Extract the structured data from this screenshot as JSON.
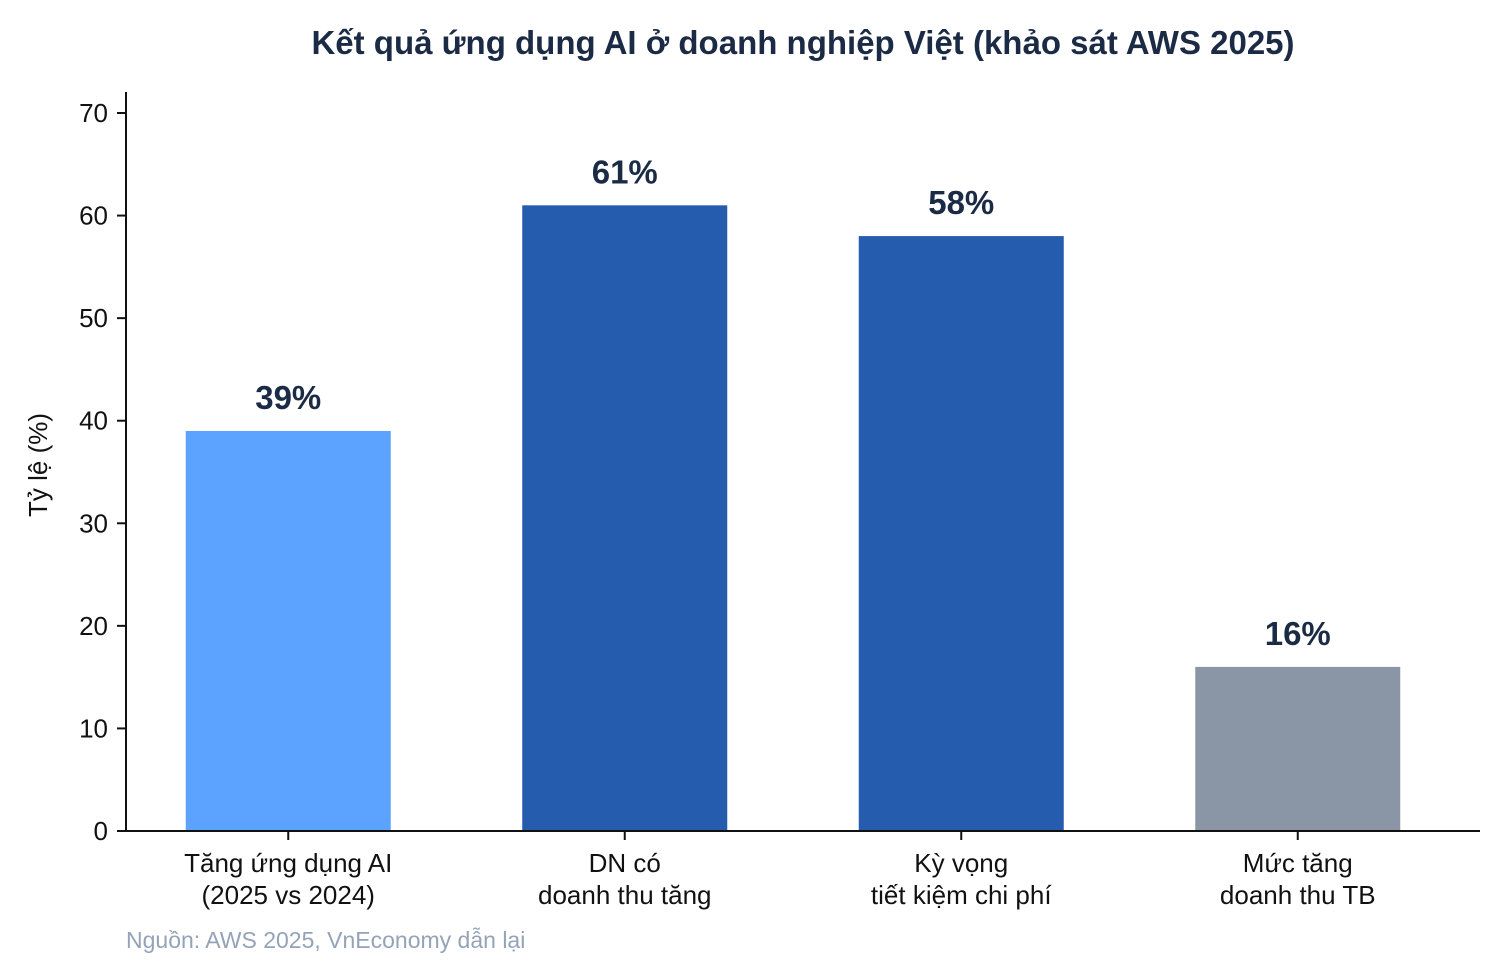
{
  "chart_data": {
    "type": "bar",
    "title": "Kết quả ứng dụng AI ở doanh nghiệp Việt (khảo sát AWS 2025)",
    "xlabel": "",
    "ylabel": "Tỷ lệ (%)",
    "ylim": [
      0,
      70
    ],
    "yticks": [
      0,
      10,
      20,
      30,
      40,
      50,
      60,
      70
    ],
    "ytick_labels": [
      "0",
      "10",
      "20",
      "30",
      "40",
      "50",
      "60",
      "70"
    ],
    "categories": [
      [
        "Tăng ứng dụng AI",
        "(2025 vs 2024)"
      ],
      [
        "DN có",
        "doanh thu tăng"
      ],
      [
        "Kỳ vọng",
        "tiết kiệm chi phí"
      ],
      [
        "Mức tăng",
        "doanh thu TB"
      ]
    ],
    "values": [
      39,
      61,
      58,
      16
    ],
    "value_labels": [
      "39%",
      "61%",
      "58%",
      "16%"
    ],
    "colors": [
      "#5ba3ff",
      "#265cad",
      "#265cad",
      "#8a95a6"
    ],
    "grid": false,
    "legend": "none"
  },
  "source_note": "Nguồn: AWS 2025, VnEconomy dẫn lại"
}
